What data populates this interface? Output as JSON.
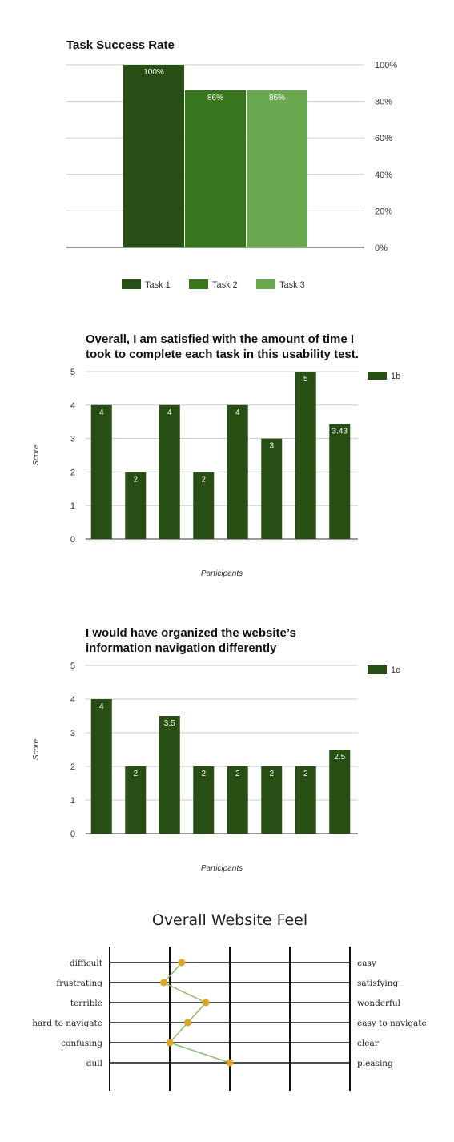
{
  "chart_data": [
    {
      "type": "bar",
      "title": "Task Success Rate",
      "categories": [
        "Task 1",
        "Task 2",
        "Task 3"
      ],
      "values": [
        100,
        86,
        86
      ],
      "data_labels": [
        "100%",
        "86%",
        "86%"
      ],
      "yticks": [
        "0%",
        "20%",
        "40%",
        "60%",
        "80%",
        "100%"
      ],
      "ylim": [
        0,
        100
      ],
      "axis_side": "right",
      "legend": [
        "Task 1",
        "Task 2",
        "Task 3"
      ],
      "legend_position": "bottom",
      "grid": true,
      "colors": [
        "#274e13",
        "#38761d",
        "#6aa84f"
      ]
    },
    {
      "type": "bar",
      "title": "Overall, I am satisfied with the amount of time I took to complete each task in this usability test.",
      "title_lines": [
        "Overall, I am satisfied with the amount of time I",
        "took to complete each task in this usability test."
      ],
      "values": [
        4,
        2,
        4,
        2,
        4,
        3,
        5,
        3.43
      ],
      "data_labels": [
        "4",
        "2",
        "4",
        "2",
        "4",
        "3",
        "5",
        "3.43"
      ],
      "yticks": [
        "0",
        "1",
        "2",
        "3",
        "4",
        "5"
      ],
      "ylim": [
        0,
        5
      ],
      "xlabel": "Participants",
      "ylabel": "Score",
      "legend": [
        "1b"
      ],
      "legend_position": "top-right",
      "grid": true,
      "colors": [
        "#274e13"
      ]
    },
    {
      "type": "bar",
      "title": "I would have organized the website’s information navigation differently",
      "title_lines": [
        "I would have organized the website’s",
        "information navigation differently"
      ],
      "values": [
        4,
        2,
        3.5,
        2,
        2,
        2,
        2,
        2.5
      ],
      "data_labels": [
        "4",
        "2",
        "3.5",
        "2",
        "2",
        "2",
        "2",
        "2.5"
      ],
      "yticks": [
        "0",
        "1",
        "2",
        "3",
        "4",
        "5"
      ],
      "ylim": [
        0,
        5
      ],
      "xlabel": "Participants",
      "ylabel": "Score",
      "legend": [
        "1c"
      ],
      "legend_position": "top-right",
      "grid": true,
      "colors": [
        "#274e13"
      ]
    },
    {
      "type": "line",
      "title": "Overall Website Feel",
      "left_labels": [
        "difficult",
        "frustrating",
        "terrible",
        "hard to navigate",
        "confusing",
        "dull"
      ],
      "right_labels": [
        "easy",
        "satisfying",
        "wonderful",
        "easy to navigate",
        "clear",
        "pleasing"
      ],
      "scale_range": [
        1,
        5
      ],
      "values": [
        2.2,
        1.9,
        2.6,
        2.3,
        2.0,
        3.0
      ],
      "colors": {
        "line": "#8aba6e",
        "marker": "#e0a623",
        "axes": "#111111"
      }
    }
  ]
}
